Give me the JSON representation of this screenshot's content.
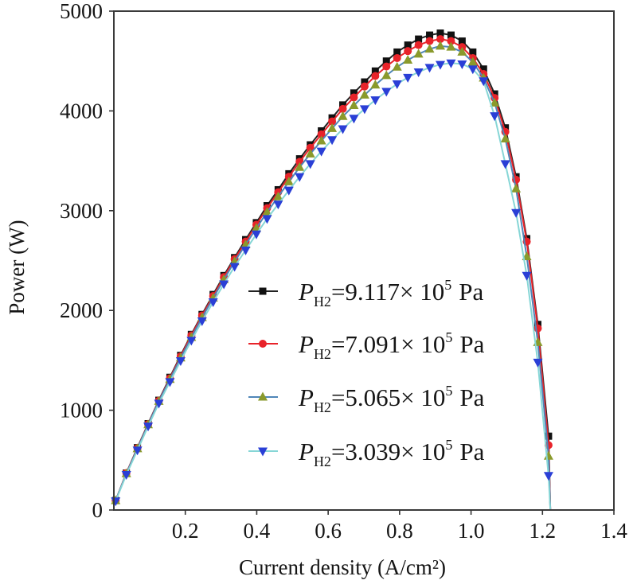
{
  "chart_data": {
    "type": "line",
    "title": "",
    "xlabel": "Current density (A/cm²)",
    "ylabel": "Power (W)",
    "xlim": [
      0,
      1.4
    ],
    "ylim": [
      0,
      5000
    ],
    "xticks": [
      0.2,
      0.4,
      0.6,
      0.8,
      1.0,
      1.2,
      1.4
    ],
    "xtick_labels": [
      "0.2",
      "0.4",
      "0.6",
      "0.8",
      "1.0",
      "1.2",
      "1.4"
    ],
    "yticks": [
      0,
      1000,
      2000,
      3000,
      4000,
      5000
    ],
    "ytick_labels": [
      "0",
      "1000",
      "2000",
      "3000",
      "4000",
      "5000"
    ],
    "grid": false,
    "legend_position": "center",
    "x_intercept": 1.222,
    "x": [
      0.005,
      0.035,
      0.066,
      0.096,
      0.126,
      0.157,
      0.187,
      0.217,
      0.247,
      0.278,
      0.308,
      0.338,
      0.369,
      0.399,
      0.429,
      0.46,
      0.49,
      0.52,
      0.55,
      0.581,
      0.611,
      0.641,
      0.672,
      0.702,
      0.732,
      0.763,
      0.793,
      0.823,
      0.853,
      0.884,
      0.914,
      0.944,
      0.975,
      1.005,
      1.035,
      1.066,
      1.096,
      1.126,
      1.156,
      1.187,
      1.217
    ],
    "series": [
      {
        "legend": {
          "symbol": "P",
          "sub": "H2",
          "value": "=9.117× 10",
          "exp": "5",
          "unit": "Pa"
        },
        "marker": "square",
        "marker_color": "#111111",
        "line_color": "#222222",
        "values": [
          95,
          370,
          625,
          865,
          1100,
          1330,
          1550,
          1760,
          1960,
          2160,
          2350,
          2530,
          2710,
          2880,
          3050,
          3210,
          3370,
          3520,
          3660,
          3800,
          3930,
          4060,
          4180,
          4290,
          4400,
          4500,
          4590,
          4660,
          4720,
          4760,
          4780,
          4760,
          4700,
          4590,
          4420,
          4170,
          3830,
          3340,
          2720,
          1860,
          740
        ]
      },
      {
        "legend": {
          "symbol": "P",
          "sub": "H2",
          "value": "=7.091× 10",
          "exp": "5",
          "unit": "Pa"
        },
        "marker": "circle",
        "marker_color": "#e8232a",
        "line_color": "#e8232a",
        "values": [
          95,
          370,
          620,
          860,
          1095,
          1320,
          1540,
          1750,
          1950,
          2145,
          2335,
          2515,
          2690,
          2860,
          3025,
          3185,
          3340,
          3490,
          3630,
          3765,
          3895,
          4020,
          4135,
          4245,
          4350,
          4445,
          4530,
          4600,
          4660,
          4700,
          4720,
          4700,
          4640,
          4530,
          4370,
          4130,
          3790,
          3310,
          2690,
          1820,
          650
        ]
      },
      {
        "legend": {
          "symbol": "P",
          "sub": "H2",
          "value": "=5.065× 10",
          "exp": "5",
          "unit": "Pa"
        },
        "marker": "triangle-up",
        "marker_color": "#8a9a2c",
        "line_color": "#4f86b8",
        "values": [
          95,
          365,
          615,
          855,
          1090,
          1310,
          1525,
          1730,
          1930,
          2125,
          2310,
          2490,
          2660,
          2825,
          2985,
          3140,
          3290,
          3435,
          3570,
          3700,
          3825,
          3945,
          4055,
          4160,
          4260,
          4355,
          4440,
          4510,
          4570,
          4620,
          4650,
          4640,
          4590,
          4490,
          4330,
          4080,
          3720,
          3220,
          2540,
          1680,
          540
        ]
      },
      {
        "legend": {
          "symbol": "P",
          "sub": "H2",
          "value": "=3.039× 10",
          "exp": "5",
          "unit": "Pa"
        },
        "marker": "triangle-down",
        "marker_color": "#2a3fd6",
        "line_color": "#86d6d6",
        "values": [
          90,
          355,
          600,
          840,
          1070,
          1285,
          1495,
          1700,
          1895,
          2085,
          2265,
          2440,
          2605,
          2765,
          2920,
          3065,
          3205,
          3340,
          3470,
          3595,
          3710,
          3820,
          3925,
          4020,
          4110,
          4195,
          4270,
          4335,
          4390,
          4435,
          4465,
          4480,
          4470,
          4420,
          4300,
          3950,
          3470,
          2980,
          2350,
          1480,
          345
        ]
      }
    ]
  }
}
